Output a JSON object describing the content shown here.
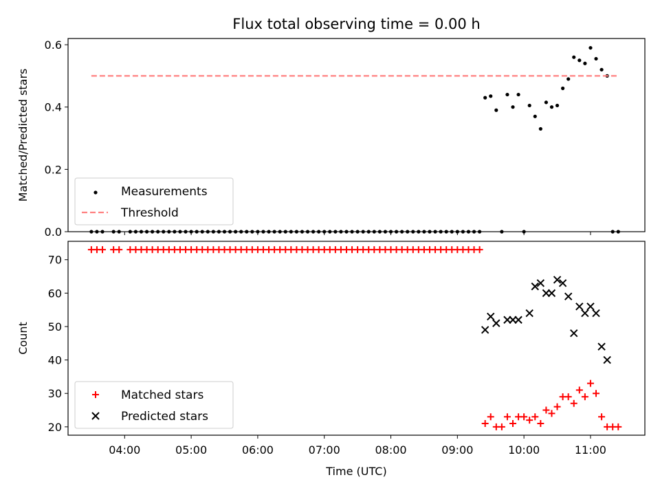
{
  "chart_data": [
    {
      "type": "scatter",
      "title": "Flux total observing time = 0.00 h",
      "ylabel": "Matched/Predicted stars",
      "xlabel": "",
      "x_ticks": [
        "04:00",
        "05:00",
        "06:00",
        "07:00",
        "08:00",
        "09:00",
        "10:00",
        "11:00"
      ],
      "xlim": [
        "03:09",
        "11:49"
      ],
      "ylim": [
        0.0,
        0.62
      ],
      "y_ticks": [
        "0.0",
        "0.2",
        "0.4",
        "0.6"
      ],
      "legend_position": "lower-left",
      "series": [
        {
          "name": "Measurements",
          "color": "#000000",
          "marker": "dot",
          "points": [
            [
              "03:30",
              0.0
            ],
            [
              "03:35",
              0.0
            ],
            [
              "03:40",
              0.0
            ],
            [
              "03:50",
              0.0
            ],
            [
              "03:55",
              0.0
            ],
            [
              "04:05",
              0.0
            ],
            [
              "04:10",
              0.0
            ],
            [
              "04:15",
              0.0
            ],
            [
              "04:20",
              0.0
            ],
            [
              "04:25",
              0.0
            ],
            [
              "04:30",
              0.0
            ],
            [
              "04:35",
              0.0
            ],
            [
              "04:40",
              0.0
            ],
            [
              "04:45",
              0.0
            ],
            [
              "04:50",
              0.0
            ],
            [
              "04:55",
              0.0
            ],
            [
              "05:00",
              0.0
            ],
            [
              "05:05",
              0.0
            ],
            [
              "05:10",
              0.0
            ],
            [
              "05:15",
              0.0
            ],
            [
              "05:20",
              0.0
            ],
            [
              "05:25",
              0.0
            ],
            [
              "05:30",
              0.0
            ],
            [
              "05:35",
              0.0
            ],
            [
              "05:40",
              0.0
            ],
            [
              "05:45",
              0.0
            ],
            [
              "05:50",
              0.0
            ],
            [
              "05:55",
              0.0
            ],
            [
              "06:00",
              0.0
            ],
            [
              "06:05",
              0.0
            ],
            [
              "06:10",
              0.0
            ],
            [
              "06:15",
              0.0
            ],
            [
              "06:20",
              0.0
            ],
            [
              "06:25",
              0.0
            ],
            [
              "06:30",
              0.0
            ],
            [
              "06:35",
              0.0
            ],
            [
              "06:40",
              0.0
            ],
            [
              "06:45",
              0.0
            ],
            [
              "06:50",
              0.0
            ],
            [
              "06:55",
              0.0
            ],
            [
              "07:00",
              0.0
            ],
            [
              "07:05",
              0.0
            ],
            [
              "07:10",
              0.0
            ],
            [
              "07:15",
              0.0
            ],
            [
              "07:20",
              0.0
            ],
            [
              "07:25",
              0.0
            ],
            [
              "07:30",
              0.0
            ],
            [
              "07:35",
              0.0
            ],
            [
              "07:40",
              0.0
            ],
            [
              "07:45",
              0.0
            ],
            [
              "07:50",
              0.0
            ],
            [
              "07:55",
              0.0
            ],
            [
              "08:00",
              0.0
            ],
            [
              "08:05",
              0.0
            ],
            [
              "08:10",
              0.0
            ],
            [
              "08:15",
              0.0
            ],
            [
              "08:20",
              0.0
            ],
            [
              "08:25",
              0.0
            ],
            [
              "08:30",
              0.0
            ],
            [
              "08:35",
              0.0
            ],
            [
              "08:40",
              0.0
            ],
            [
              "08:45",
              0.0
            ],
            [
              "08:50",
              0.0
            ],
            [
              "08:55",
              0.0
            ],
            [
              "09:00",
              0.0
            ],
            [
              "09:05",
              0.0
            ],
            [
              "09:10",
              0.0
            ],
            [
              "09:15",
              0.0
            ],
            [
              "09:20",
              0.0
            ],
            [
              "09:25",
              0.43
            ],
            [
              "09:30",
              0.435
            ],
            [
              "09:35",
              0.39
            ],
            [
              "09:40",
              0.0
            ],
            [
              "09:45",
              0.44
            ],
            [
              "09:50",
              0.4
            ],
            [
              "09:55",
              0.44
            ],
            [
              "10:00",
              0.0
            ],
            [
              "10:05",
              0.405
            ],
            [
              "10:10",
              0.37
            ],
            [
              "10:15",
              0.33
            ],
            [
              "10:20",
              0.415
            ],
            [
              "10:25",
              0.4
            ],
            [
              "10:30",
              0.405
            ],
            [
              "10:35",
              0.46
            ],
            [
              "10:40",
              0.49
            ],
            [
              "10:45",
              0.56
            ],
            [
              "10:50",
              0.55
            ],
            [
              "10:55",
              0.54
            ],
            [
              "11:00",
              0.59
            ],
            [
              "11:05",
              0.555
            ],
            [
              "11:10",
              0.52
            ],
            [
              "11:15",
              0.5
            ],
            [
              "11:20",
              0.0
            ],
            [
              "11:25",
              0.0
            ]
          ]
        },
        {
          "name": "Threshold",
          "color": "#ff7f7f",
          "style": "dashed",
          "x": [
            "03:30",
            "11:25"
          ],
          "y": [
            0.5,
            0.5
          ]
        }
      ]
    },
    {
      "type": "scatter",
      "title": "",
      "ylabel": "Count",
      "xlabel": "Time (UTC)",
      "x_ticks": [
        "04:00",
        "05:00",
        "06:00",
        "07:00",
        "08:00",
        "09:00",
        "10:00",
        "11:00"
      ],
      "xlim": [
        "03:09",
        "11:49"
      ],
      "ylim": [
        17.5,
        75.5
      ],
      "y_ticks": [
        "20",
        "30",
        "40",
        "50",
        "60",
        "70"
      ],
      "legend_position": "lower-left",
      "series": [
        {
          "name": "Matched stars",
          "color": "#ff0000",
          "marker": "plus",
          "points": [
            [
              "03:30",
              73
            ],
            [
              "03:35",
              73
            ],
            [
              "03:40",
              73
            ],
            [
              "03:50",
              73
            ],
            [
              "03:55",
              73
            ],
            [
              "04:05",
              73
            ],
            [
              "04:10",
              73
            ],
            [
              "04:15",
              73
            ],
            [
              "04:20",
              73
            ],
            [
              "04:25",
              73
            ],
            [
              "04:30",
              73
            ],
            [
              "04:35",
              73
            ],
            [
              "04:40",
              73
            ],
            [
              "04:45",
              73
            ],
            [
              "04:50",
              73
            ],
            [
              "04:55",
              73
            ],
            [
              "05:00",
              73
            ],
            [
              "05:05",
              73
            ],
            [
              "05:10",
              73
            ],
            [
              "05:15",
              73
            ],
            [
              "05:20",
              73
            ],
            [
              "05:25",
              73
            ],
            [
              "05:30",
              73
            ],
            [
              "05:35",
              73
            ],
            [
              "05:40",
              73
            ],
            [
              "05:45",
              73
            ],
            [
              "05:50",
              73
            ],
            [
              "05:55",
              73
            ],
            [
              "06:00",
              73
            ],
            [
              "06:05",
              73
            ],
            [
              "06:10",
              73
            ],
            [
              "06:15",
              73
            ],
            [
              "06:20",
              73
            ],
            [
              "06:25",
              73
            ],
            [
              "06:30",
              73
            ],
            [
              "06:35",
              73
            ],
            [
              "06:40",
              73
            ],
            [
              "06:45",
              73
            ],
            [
              "06:50",
              73
            ],
            [
              "06:55",
              73
            ],
            [
              "07:00",
              73
            ],
            [
              "07:05",
              73
            ],
            [
              "07:10",
              73
            ],
            [
              "07:15",
              73
            ],
            [
              "07:20",
              73
            ],
            [
              "07:25",
              73
            ],
            [
              "07:30",
              73
            ],
            [
              "07:35",
              73
            ],
            [
              "07:40",
              73
            ],
            [
              "07:45",
              73
            ],
            [
              "07:50",
              73
            ],
            [
              "07:55",
              73
            ],
            [
              "08:00",
              73
            ],
            [
              "08:05",
              73
            ],
            [
              "08:10",
              73
            ],
            [
              "08:15",
              73
            ],
            [
              "08:20",
              73
            ],
            [
              "08:25",
              73
            ],
            [
              "08:30",
              73
            ],
            [
              "08:35",
              73
            ],
            [
              "08:40",
              73
            ],
            [
              "08:45",
              73
            ],
            [
              "08:50",
              73
            ],
            [
              "08:55",
              73
            ],
            [
              "09:00",
              73
            ],
            [
              "09:05",
              73
            ],
            [
              "09:10",
              73
            ],
            [
              "09:15",
              73
            ],
            [
              "09:20",
              73
            ],
            [
              "09:25",
              21
            ],
            [
              "09:30",
              23
            ],
            [
              "09:35",
              20
            ],
            [
              "09:40",
              20
            ],
            [
              "09:45",
              23
            ],
            [
              "09:50",
              21
            ],
            [
              "09:55",
              23
            ],
            [
              "10:00",
              23
            ],
            [
              "10:05",
              22
            ],
            [
              "10:10",
              23
            ],
            [
              "10:15",
              21
            ],
            [
              "10:20",
              25
            ],
            [
              "10:25",
              24
            ],
            [
              "10:30",
              26
            ],
            [
              "10:35",
              29
            ],
            [
              "10:40",
              29
            ],
            [
              "10:45",
              27
            ],
            [
              "10:50",
              31
            ],
            [
              "10:55",
              29
            ],
            [
              "11:00",
              33
            ],
            [
              "11:05",
              30
            ],
            [
              "11:10",
              23
            ],
            [
              "11:15",
              20
            ],
            [
              "11:20",
              20
            ],
            [
              "11:25",
              20
            ]
          ]
        },
        {
          "name": "Predicted stars",
          "color": "#000000",
          "marker": "x",
          "points": [
            [
              "09:25",
              49
            ],
            [
              "09:30",
              53
            ],
            [
              "09:35",
              51
            ],
            [
              "09:45",
              52
            ],
            [
              "09:50",
              52
            ],
            [
              "09:55",
              52
            ],
            [
              "10:05",
              54
            ],
            [
              "10:10",
              62
            ],
            [
              "10:15",
              63
            ],
            [
              "10:20",
              60
            ],
            [
              "10:25",
              60
            ],
            [
              "10:30",
              64
            ],
            [
              "10:35",
              63
            ],
            [
              "10:40",
              59
            ],
            [
              "10:45",
              48
            ],
            [
              "10:50",
              56
            ],
            [
              "10:55",
              54
            ],
            [
              "11:00",
              56
            ],
            [
              "11:05",
              54
            ],
            [
              "11:10",
              44
            ],
            [
              "11:15",
              40
            ]
          ]
        }
      ]
    }
  ]
}
